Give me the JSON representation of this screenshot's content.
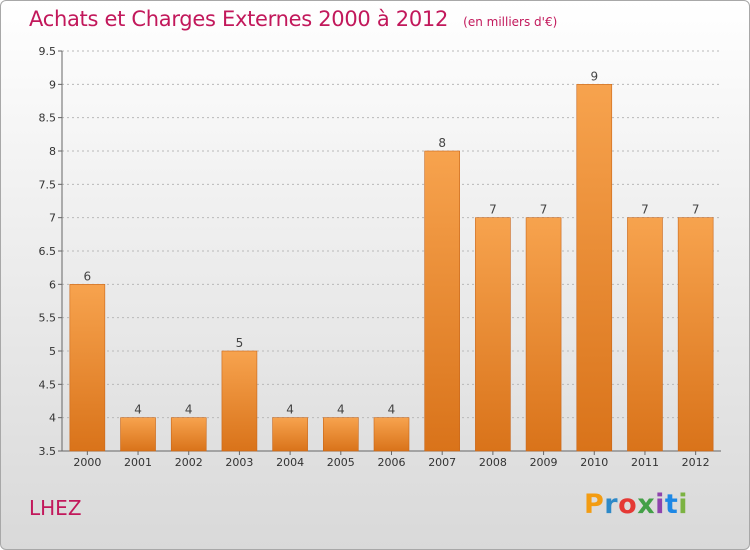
{
  "header": {
    "title": "Achats et Charges Externes 2000 à 2012",
    "unit": "(en milliers d'€)"
  },
  "footer": {
    "town": "LHEZ",
    "logo_text": "Proxiti"
  },
  "colors": {
    "title": "#c2185b",
    "bar_top": "#f7a34e",
    "bar_bottom": "#d9731a",
    "grid": "#b9b9b9"
  },
  "chart_data": {
    "type": "bar",
    "title": "Achats et Charges Externes 2000 à 2012",
    "subtitle": "(en milliers d'€)",
    "categories": [
      "2000",
      "2001",
      "2002",
      "2003",
      "2004",
      "2005",
      "2006",
      "2007",
      "2008",
      "2009",
      "2010",
      "2011",
      "2012"
    ],
    "values": [
      6,
      4,
      4,
      5,
      4,
      4,
      4,
      8,
      7,
      7,
      9,
      7,
      7
    ],
    "ylim": [
      3.5,
      9.5
    ],
    "yticks": [
      "3.5",
      "4",
      "4.5",
      "5",
      "5.5",
      "6",
      "6.5",
      "7",
      "7.5",
      "8",
      "8.5",
      "9",
      "9.5"
    ],
    "grid": true,
    "data_labels": true
  }
}
